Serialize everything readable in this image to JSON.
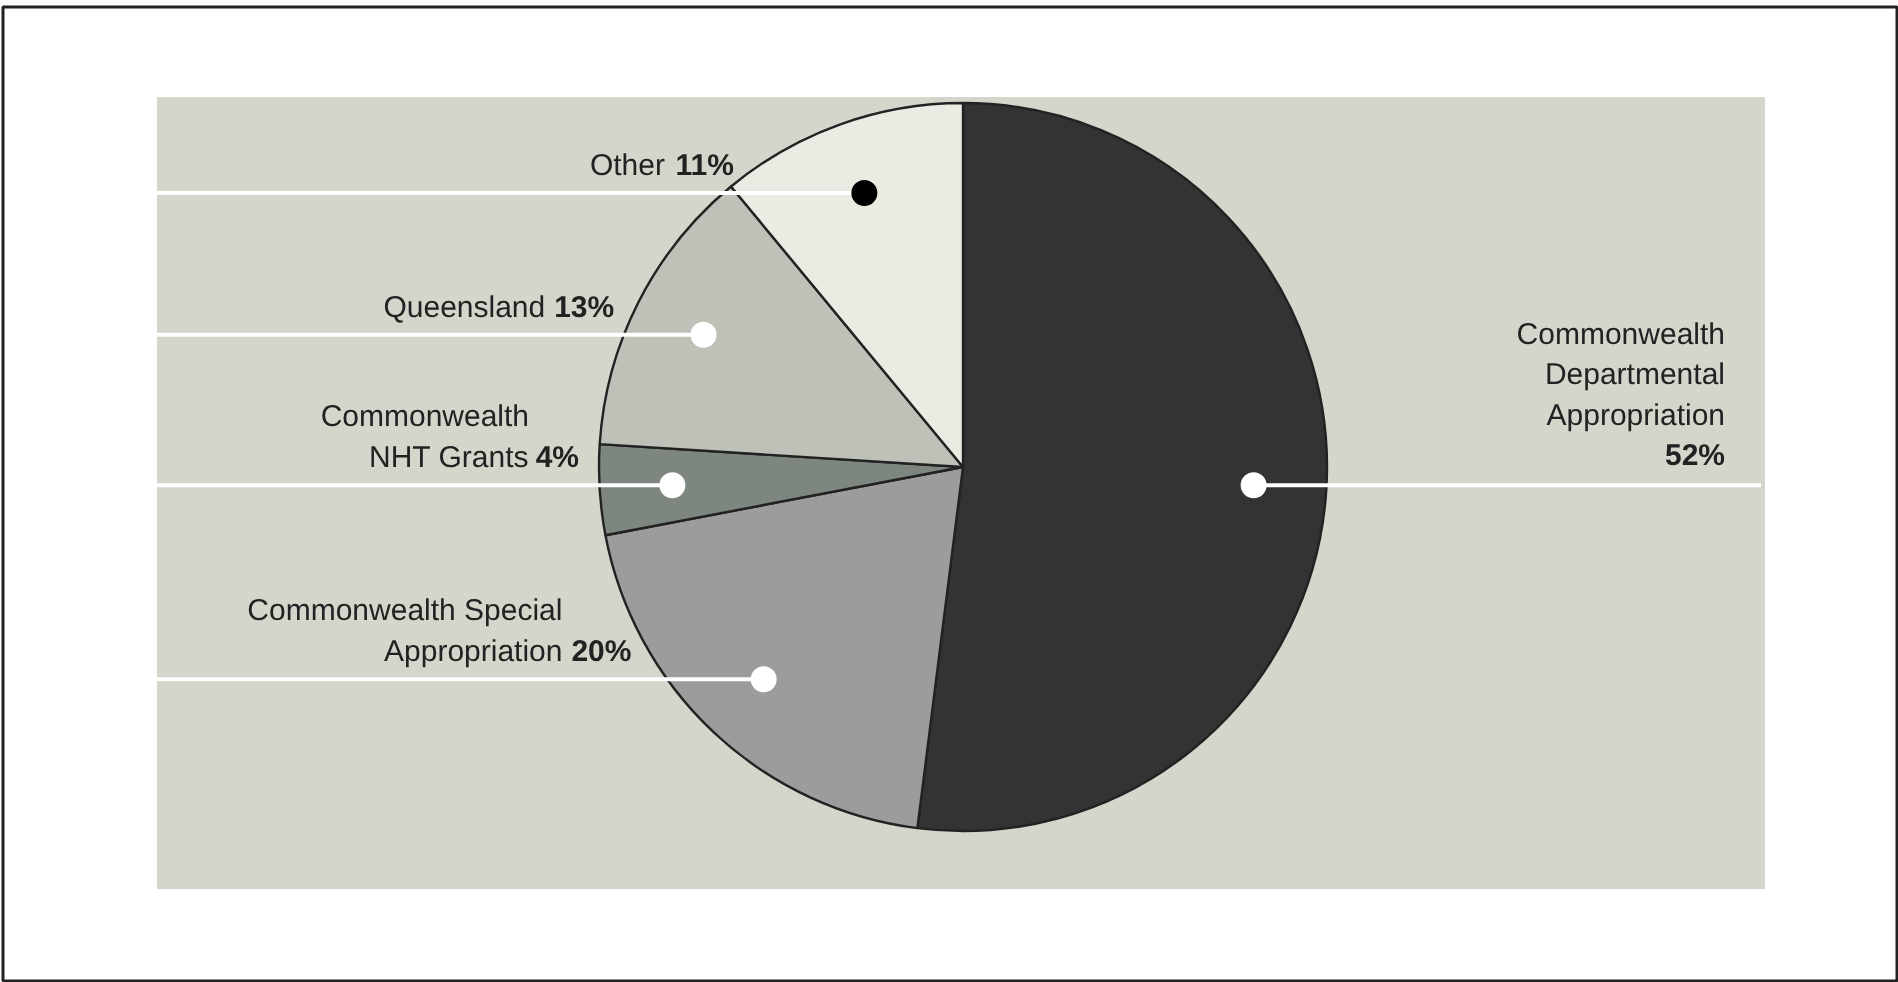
{
  "chart_data": {
    "type": "pie",
    "categories": [
      "Commonwealth\nDepartmental\nAppropriation",
      "Commonwealth Special\nAppropriation",
      "Commonwealth\nNHT Grants",
      "Queensland",
      "Other"
    ],
    "values": [
      52,
      20,
      4,
      13,
      11
    ],
    "colors": [
      "#333333",
      "#9c9c9c",
      "#7e877f",
      "#bdc1b8",
      "#ebebe3"
    ],
    "value_labels": [
      "52%",
      "20%",
      "4%",
      "13%",
      "11%"
    ]
  }
}
